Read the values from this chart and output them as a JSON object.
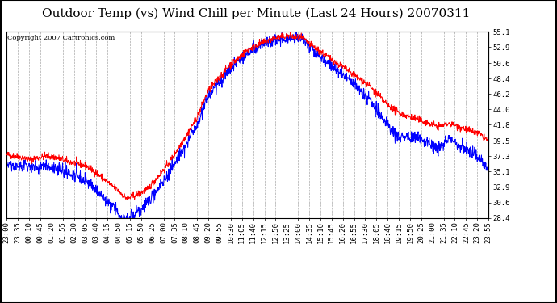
{
  "title": "Outdoor Temp (vs) Wind Chill per Minute (Last 24 Hours) 20070311",
  "copyright": "Copyright 2007 Cartronics.com",
  "yticks": [
    28.4,
    30.6,
    32.9,
    35.1,
    37.3,
    39.5,
    41.8,
    44.0,
    46.2,
    48.4,
    50.6,
    52.9,
    55.1
  ],
  "ymin": 28.4,
  "ymax": 55.1,
  "background_color": "#ffffff",
  "grid_color": "#aaaaaa",
  "line_color_temp": "#ff0000",
  "line_color_chill": "#0000ff",
  "title_fontsize": 11,
  "tick_fontsize": 6.5,
  "copyright_fontsize": 6,
  "x_labels": [
    "23:00",
    "23:35",
    "00:10",
    "00:45",
    "01:20",
    "01:55",
    "02:30",
    "03:05",
    "03:40",
    "04:15",
    "04:50",
    "05:15",
    "05:50",
    "06:25",
    "07:00",
    "07:35",
    "08:10",
    "08:45",
    "09:20",
    "09:55",
    "10:30",
    "11:05",
    "11:40",
    "12:15",
    "12:50",
    "13:25",
    "14:00",
    "14:35",
    "15:10",
    "15:45",
    "16:20",
    "16:55",
    "17:30",
    "18:05",
    "18:40",
    "19:15",
    "19:50",
    "20:25",
    "21:00",
    "21:35",
    "22:10",
    "22:45",
    "23:20",
    "23:55"
  ],
  "temp_anchors_min": [
    0,
    35,
    70,
    115,
    150,
    185,
    215,
    240,
    265,
    290,
    315,
    330,
    345,
    360,
    390,
    420,
    480,
    540,
    570,
    600,
    660,
    720,
    760,
    800,
    840,
    870,
    880,
    900,
    960,
    1020,
    1080,
    1110,
    1140,
    1170,
    1200,
    1230,
    1260,
    1290,
    1320,
    1350,
    1380,
    1410,
    1439
  ],
  "temp_anchors_val": [
    37.5,
    37.2,
    36.8,
    37.3,
    37.1,
    36.5,
    36.2,
    35.8,
    35.0,
    34.0,
    33.0,
    32.5,
    31.8,
    31.2,
    31.8,
    32.5,
    36.0,
    40.5,
    43.0,
    46.5,
    50.0,
    52.5,
    53.5,
    54.2,
    54.5,
    54.2,
    54.3,
    53.5,
    51.5,
    49.5,
    47.5,
    46.0,
    44.5,
    43.5,
    43.0,
    42.5,
    42.0,
    41.5,
    42.0,
    41.5,
    41.0,
    40.5,
    39.5
  ],
  "chill_diff_anchors_min": [
    0,
    35,
    70,
    115,
    150,
    185,
    215,
    240,
    265,
    290,
    315,
    330,
    345,
    360,
    390,
    420,
    480,
    540,
    570,
    600,
    660,
    720,
    760,
    800,
    840,
    870,
    880,
    900,
    960,
    1020,
    1080,
    1110,
    1140,
    1170,
    1200,
    1230,
    1260,
    1290,
    1320,
    1350,
    1380,
    1410,
    1439
  ],
  "chill_diff_anchors_val": [
    1.5,
    1.3,
    1.2,
    1.4,
    1.5,
    1.8,
    2.0,
    2.2,
    2.5,
    2.8,
    3.0,
    3.2,
    3.3,
    3.0,
    2.5,
    2.0,
    1.5,
    1.2,
    1.0,
    0.8,
    0.5,
    0.4,
    0.3,
    0.3,
    0.3,
    0.3,
    0.3,
    0.4,
    0.8,
    1.2,
    2.0,
    2.5,
    3.0,
    3.5,
    3.0,
    2.5,
    3.0,
    3.5,
    2.0,
    2.5,
    3.0,
    3.5,
    4.0
  ]
}
